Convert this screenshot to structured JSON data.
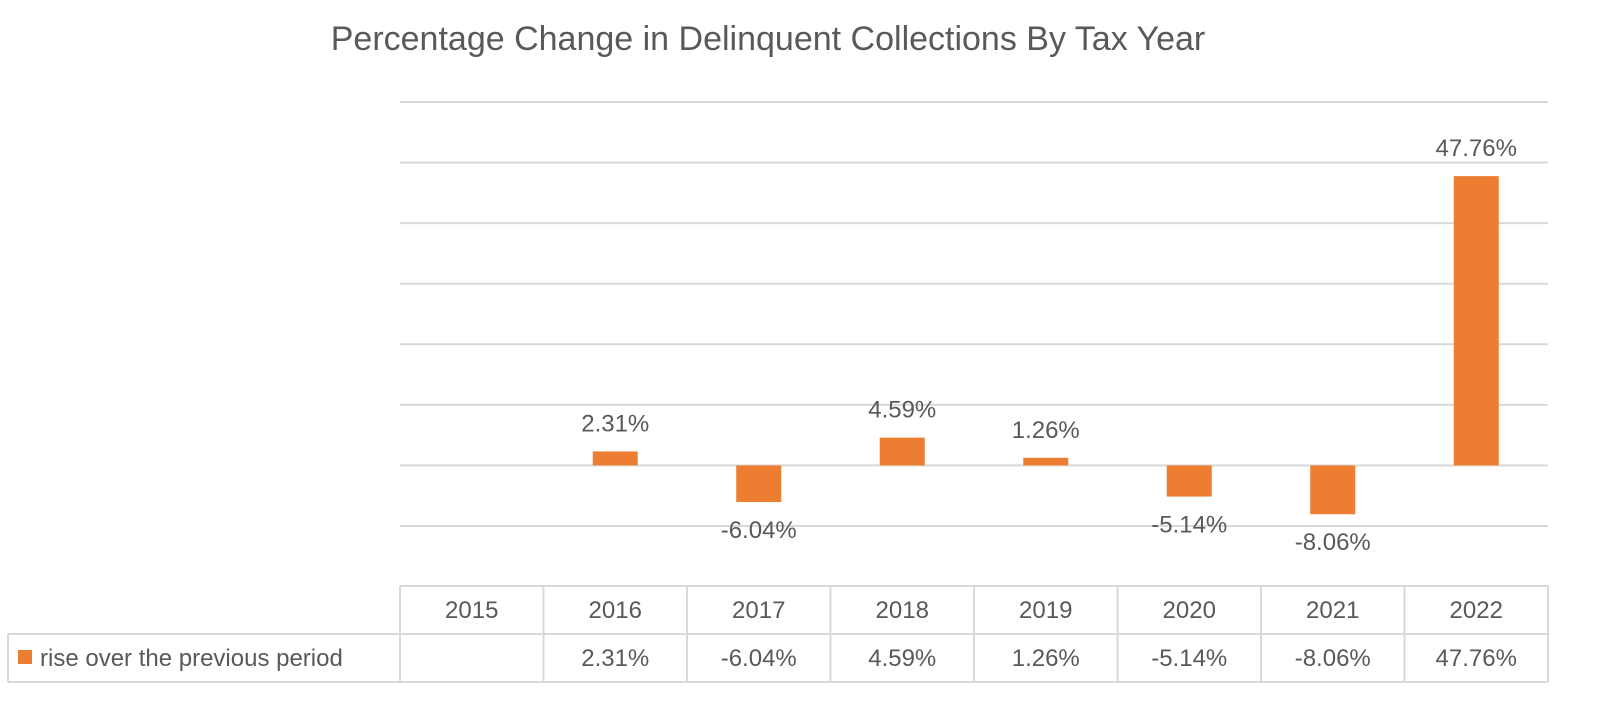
{
  "chart_data": {
    "type": "bar",
    "title": "Percentage Change in Delinquent Collections By Tax Year",
    "xlabel": "",
    "ylabel": "",
    "categories": [
      "2015",
      "2016",
      "2017",
      "2018",
      "2019",
      "2020",
      "2021",
      "2022"
    ],
    "series": [
      {
        "name": "rise over the previous period",
        "values": [
          null,
          2.31,
          -6.04,
          4.59,
          1.26,
          -5.14,
          -8.06,
          47.76
        ],
        "labels": [
          "",
          "2.31%",
          "-6.04%",
          "4.59%",
          "1.26%",
          "-5.14%",
          "-8.06%",
          "47.76%"
        ],
        "color": "#ED7D31"
      }
    ],
    "ylim": [
      -10,
      60
    ],
    "grid": true,
    "legend": "data-table",
    "data_table": true
  }
}
